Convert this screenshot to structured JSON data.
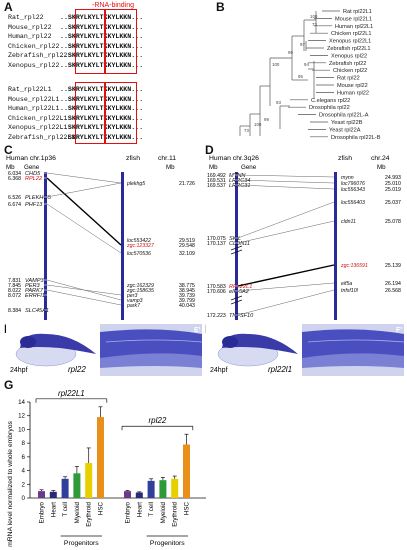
{
  "panels": {
    "A": "A",
    "B": "B",
    "C": "C",
    "D": "D",
    "E": "E",
    "Ep": "E'",
    "F": "F",
    "Fp": "F'",
    "G": "G"
  },
  "panelA": {
    "rna_binding_label": "-RNA-binding",
    "group1": [
      {
        "name": "Rat_rpl22",
        "seq": "..SKRYLKYLTKKYLKKN..."
      },
      {
        "name": "Mouse_rpl22",
        "seq": "..SKRYLKYLTKKYLKKN..."
      },
      {
        "name": "Human_rpl22",
        "seq": "..SKRYLKYLTKKYLKKN..."
      },
      {
        "name": "Chicken_rpl22",
        "seq": "..SKRYLKYLTKKYLKKN..."
      },
      {
        "name": "Zebrafish_rpl22",
        "seq": "..SKRYLKYLTKKYLKKN..."
      },
      {
        "name": "Xenopus_rpl22",
        "seq": "..SKRYLKYLTKKYLKKN..."
      }
    ],
    "group2": [
      {
        "name": "Rat_rpl22L1",
        "seq": "..SKRYLKYLTKKYLKKN..."
      },
      {
        "name": "Mouse_rpl22L1",
        "seq": "..SKRYLKYLTKKYLKKN..."
      },
      {
        "name": "Human_rpl22L1",
        "seq": "..SKRYLKYLTKKYLKKN..."
      },
      {
        "name": "Chicken_rpl22L1",
        "seq": "..SKRYLKYLTKKYLKKN..."
      },
      {
        "name": "Xenopus_rpl22L1",
        "seq": "..SKRYLKYLTKKYLKKN..."
      },
      {
        "name": "Zebrafish_rpl22L1",
        "seq": "..SKRYLKYLTKKYLKKN..."
      }
    ]
  },
  "panelB": {
    "leaves": [
      "Rat rpl22L1",
      "Mouse rpl22L1",
      "Human rpl22L1",
      "Chicken rpl22L1",
      "Xenopus rpl22L1",
      "Zebrafish rpl22L1",
      "Xenopus rpl22",
      "Zebrafish rpl22",
      "Chicken rpl22",
      "Rat rpl22",
      "Mouse rpl22",
      "Human rpl22",
      "C.elegans rpl22",
      "Drosophila rpl22",
      "Drosophila rpl22L-A",
      "Yeast rpl22B",
      "Yeast rpl22A",
      "Drosophila rpl22L-B"
    ],
    "bootstrap": [
      "100",
      "73",
      "97",
      "94",
      "99",
      "95",
      "100",
      "93",
      "99",
      "100",
      "73"
    ]
  },
  "panelC": {
    "left_title": "Human chr.1p36",
    "right_title_1": "zfish",
    "right_title_2": "chr.11",
    "mb": "Mb",
    "gene": "Gene",
    "human": [
      {
        "mb": "6.034",
        "gene": "CHD5",
        "red": false
      },
      {
        "mb": "6.368",
        "gene": "RPL22",
        "red": true
      },
      {
        "mb": "6.526",
        "gene": "PLEKHG5",
        "red": false
      },
      {
        "mb": "6.674",
        "gene": "PHF13",
        "red": false
      },
      {
        "mb": "7.831",
        "gene": "VAMP3",
        "red": false
      },
      {
        "mb": "7.845",
        "gene": "PER3",
        "red": false
      },
      {
        "mb": "8.022",
        "gene": "PARK7",
        "red": false
      },
      {
        "mb": "8.072",
        "gene": "ERRFI1",
        "red": false
      },
      {
        "mb": "8.384",
        "gene": "SLC45A1",
        "red": false
      }
    ],
    "zfish": [
      {
        "gene": "plekhg5",
        "mb": "21.726",
        "red": false
      },
      {
        "gene": "loc553422",
        "mb": "29.519",
        "red": false
      },
      {
        "gene": "zgc:123327",
        "mb": "29.548",
        "red": true
      },
      {
        "gene": "loc570536",
        "mb": "32.109",
        "red": false
      },
      {
        "gene": "zgc:162329",
        "mb": "38.775",
        "red": false
      },
      {
        "gene": "zgc:158635",
        "mb": "38.945",
        "red": false
      },
      {
        "gene": "per3",
        "mb": "39.739",
        "red": false
      },
      {
        "gene": "vamp3",
        "mb": "39.799",
        "red": false
      },
      {
        "gene": "park7",
        "mb": "40.043",
        "red": false
      }
    ]
  },
  "panelD": {
    "left_title": "Human chr.3q26",
    "right_title_1": "zfish",
    "right_title_2": "chr.24",
    "mb": "Mb",
    "gene": "Gene",
    "human": [
      {
        "mb": "169.492",
        "gene": "MYNN",
        "red": false
      },
      {
        "mb": "169.531",
        "gene": "LRRC34",
        "red": false
      },
      {
        "mb": "169.537",
        "gene": "LRRC31",
        "red": false
      },
      {
        "mb": "170.075",
        "gene": "SKIL",
        "red": false
      },
      {
        "mb": "170.137",
        "gene": "CLDN11",
        "red": false
      },
      {
        "mb": "170.583",
        "gene": "RPL22L1",
        "red": true
      },
      {
        "mb": "170.606",
        "gene": "eIF-5A2",
        "red": false
      },
      {
        "mb": "172.223",
        "gene": "TNFSF10",
        "red": false
      }
    ],
    "zfish": [
      {
        "gene": "mynn",
        "mb": "24.993",
        "red": false
      },
      {
        "gene": "loc796076",
        "mb": "25.010",
        "red": false
      },
      {
        "gene": "loc556343",
        "mb": "25.019",
        "red": false
      },
      {
        "gene": "loc556403",
        "mb": "25.037",
        "red": false
      },
      {
        "gene": "cldn11",
        "mb": "25.078",
        "red": false
      },
      {
        "gene": "zgc:136591",
        "mb": "25.139",
        "red": true
      },
      {
        "gene": "eif5a",
        "mb": "26.194",
        "red": false
      },
      {
        "gene": "tnfsf10l",
        "mb": "26.568",
        "red": false
      }
    ]
  },
  "panelE": {
    "stage": "24hpf",
    "gene": "rpl22"
  },
  "panelF": {
    "stage": "24hpf",
    "gene": "rpl22l1"
  },
  "chart_data": {
    "type": "bar",
    "ylabel": "mRNA level normalized to whole embryos",
    "ylim": [
      0,
      14
    ],
    "yticks": [
      "0",
      "2",
      "4",
      "6",
      "8",
      "10",
      "12",
      "14"
    ],
    "groups": [
      {
        "name": "rpl22L1",
        "categories": [
          "Embryo",
          "Heart",
          "T cell",
          "Myeloid",
          "Erythroid",
          "HSC"
        ],
        "values": [
          1.0,
          0.9,
          2.8,
          3.6,
          5.1,
          11.8
        ],
        "errors": [
          0.2,
          0.2,
          0.3,
          1.0,
          2.2,
          1.5
        ]
      },
      {
        "name": "rpl22",
        "categories": [
          "Embryo",
          "Heart",
          "T cell",
          "Myeloid",
          "Erythroid",
          "HSC"
        ],
        "values": [
          1.0,
          0.8,
          2.5,
          2.6,
          2.8,
          7.8
        ],
        "errors": [
          0.1,
          0.1,
          0.3,
          0.4,
          0.4,
          1.5
        ]
      }
    ],
    "colors": [
      "#6b3a8a",
      "#2a2a78",
      "#2f3f9a",
      "#2f9a3a",
      "#e8d000",
      "#e8901a"
    ],
    "progenitors_label": "Progenitors"
  }
}
